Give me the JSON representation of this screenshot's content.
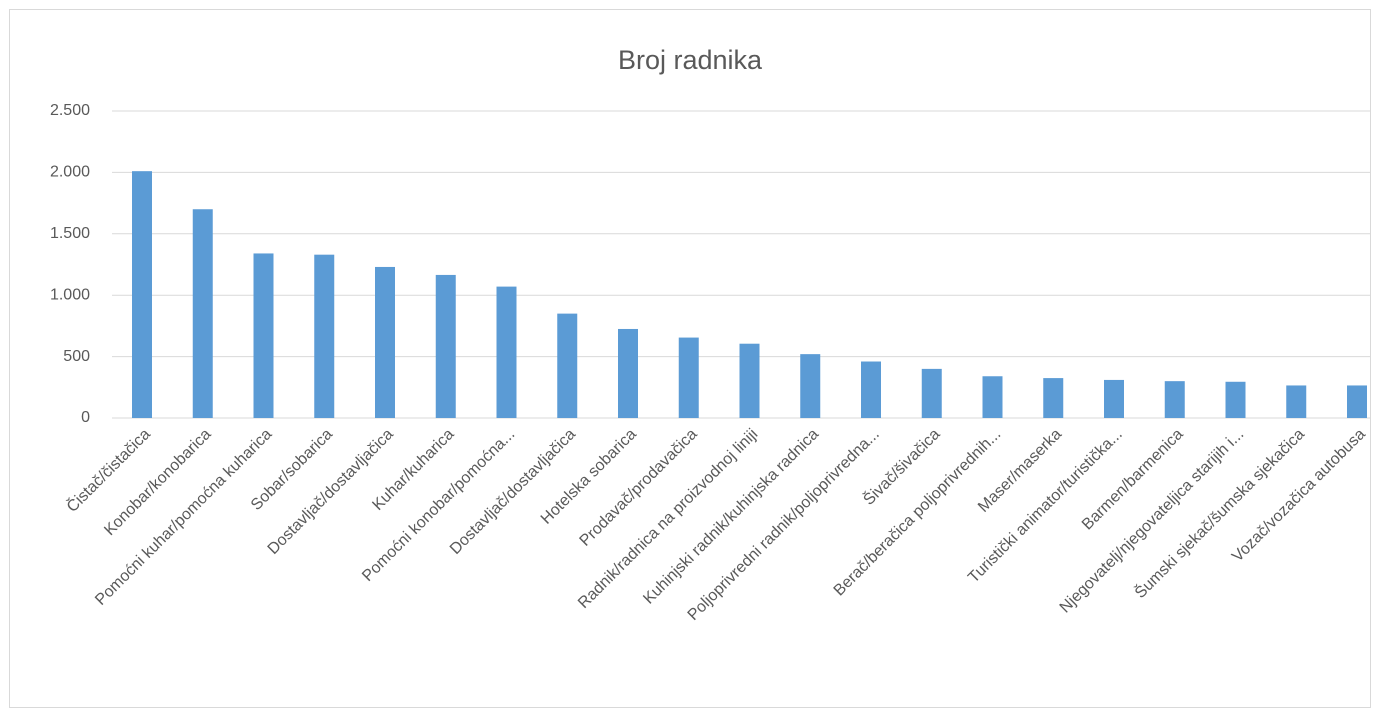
{
  "chart_data": {
    "type": "bar",
    "title": "Broj radnika",
    "categories": [
      "Čistač/čistačica",
      "Konobar/konobarica",
      "Pomoćni kuhar/pomoćna kuharica",
      "Sobar/sobarica",
      "Dostavljač/dostavljačica",
      "Kuhar/kuharica",
      "Pomoćni konobar/pomoćna...",
      "Dostavljač/dostavljačica",
      "Hotelska sobarica",
      "Prodavač/prodavačica",
      "Radnik/radnica na proizvodnoj liniji",
      "Kuhinjski radnik/kuhinjska radnica",
      "Poljoprivredni radnik/poljoprivredna...",
      "Šivač/šivačica",
      "Berač/beračica poljoprivrednih...",
      "Maser/maserka",
      "Turistički animator/turistička...",
      "Barmen/barmenica",
      "Njegovatelj/njegovateljica starijih i...",
      "Šumski sjekač/šumska sjekačica",
      "Vozač/vozačica autobusa"
    ],
    "values": [
      2010,
      1700,
      1340,
      1330,
      1230,
      1165,
      1070,
      850,
      725,
      655,
      605,
      520,
      460,
      400,
      340,
      325,
      310,
      300,
      295,
      265,
      265
    ],
    "color": "#5b9bd5",
    "ylim": [
      0,
      2500
    ],
    "yticks": [
      0,
      500,
      {
        "value": 1000,
        "label": "1.000"
      },
      {
        "value": 1500,
        "label": "1.500"
      },
      {
        "value": 2000,
        "label": "2.000"
      },
      {
        "value": 2500,
        "label": "2.500"
      }
    ],
    "grid": true
  }
}
